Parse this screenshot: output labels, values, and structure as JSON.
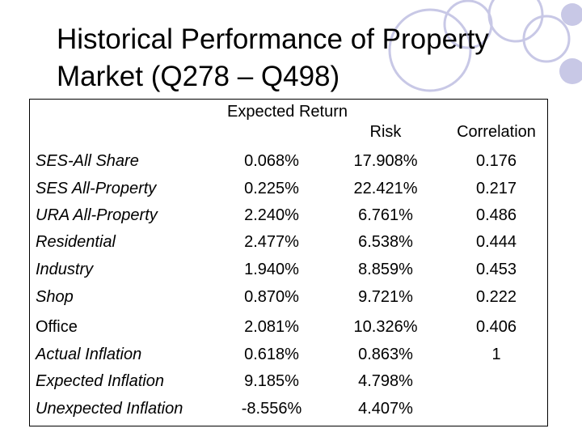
{
  "slide": {
    "title": "Historical Performance of Property Market (Q278 – Q498)",
    "accent_color": "#c8c8e6"
  },
  "table": {
    "headers": {
      "expected_return": "Expected Return",
      "risk": "Risk",
      "correlation": "Correlation"
    },
    "rows": [
      {
        "label": "SES-All Share",
        "expected_return": "0.068%",
        "risk": "17.908%",
        "correlation": "0.176"
      },
      {
        "label": "SES All-Property",
        "expected_return": "0.225%",
        "risk": "22.421%",
        "correlation": "0.217"
      },
      {
        "label": "URA All-Property",
        "expected_return": "2.240%",
        "risk": "6.761%",
        "correlation": "0.486"
      },
      {
        "label": "Residential",
        "expected_return": "2.477%",
        "risk": "6.538%",
        "correlation": "0.444"
      },
      {
        "label": "Industry",
        "expected_return": "1.940%",
        "risk": "8.859%",
        "correlation": "0.453"
      },
      {
        "label": "Shop",
        "expected_return": "0.870%",
        "risk": "9.721%",
        "correlation": "0.222"
      },
      {
        "label": "Office",
        "expected_return": "2.081%",
        "risk": "10.326%",
        "correlation": "0.406"
      },
      {
        "label": "Actual Inflation",
        "expected_return": "0.618%",
        "risk": "0.863%",
        "correlation": "1"
      },
      {
        "label": "Expected Inflation",
        "expected_return": "9.185%",
        "risk": "4.798%",
        "correlation": ""
      },
      {
        "label": "Unexpected Inflation",
        "expected_return": "-8.556%",
        "risk": "4.407%",
        "correlation": ""
      }
    ]
  }
}
